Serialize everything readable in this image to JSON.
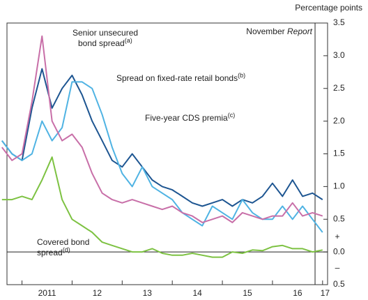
{
  "chart_data": {
    "type": "line",
    "axis_label": "Percentage points",
    "x": [
      2010.6,
      2010.8,
      2011.0,
      2011.2,
      2011.4,
      2011.6,
      2011.8,
      2012.0,
      2012.2,
      2012.4,
      2012.6,
      2012.8,
      2013.0,
      2013.2,
      2013.4,
      2013.6,
      2013.8,
      2014.0,
      2014.2,
      2014.4,
      2014.6,
      2014.8,
      2015.0,
      2015.2,
      2015.4,
      2015.6,
      2015.8,
      2016.0,
      2016.2,
      2016.4,
      2016.6,
      2016.8,
      2017.0
    ],
    "xlim": [
      2010.7,
      2017.1
    ],
    "xticks": [
      2011,
      2012,
      2013,
      2014,
      2015,
      2016,
      2017
    ],
    "xtick_labels": [
      {
        "value": 2011.5,
        "label": "2011"
      },
      {
        "value": 2012.5,
        "label": "12"
      },
      {
        "value": 2013.5,
        "label": "13"
      },
      {
        "value": 2014.5,
        "label": "14"
      },
      {
        "value": 2015.5,
        "label": "15"
      },
      {
        "value": 2016.5,
        "label": "16"
      },
      {
        "value": 2017.05,
        "label": "17"
      }
    ],
    "ylim": [
      -0.5,
      3.5
    ],
    "yticks": [
      {
        "value": -0.5,
        "label": "0.5"
      },
      {
        "value": 0,
        "label": "0.0"
      },
      {
        "value": 0.5,
        "label": "0.5"
      },
      {
        "value": 1,
        "label": "1.0"
      },
      {
        "value": 1.5,
        "label": "1.5"
      },
      {
        "value": 2,
        "label": "2.0"
      },
      {
        "value": 2.5,
        "label": "2.5"
      },
      {
        "value": 3,
        "label": "3.0"
      },
      {
        "value": 3.5,
        "label": "3.5"
      }
    ],
    "sign_labels": [
      "+",
      "–"
    ],
    "marker_line": {
      "x": 2016.85,
      "label": "November",
      "label_italic": "Report"
    },
    "series": [
      {
        "label_lines": [
          "Five-year CDS premia"
        ],
        "footnote": "(c)",
        "color": "#1d5591",
        "values": [
          1.7,
          1.5,
          1.4,
          2.2,
          2.8,
          2.2,
          2.5,
          2.7,
          2.4,
          2.0,
          1.7,
          1.4,
          1.3,
          1.5,
          1.3,
          1.1,
          1.0,
          0.95,
          0.85,
          0.75,
          0.7,
          0.75,
          0.8,
          0.7,
          0.8,
          0.75,
          0.85,
          1.05,
          0.85,
          1.1,
          0.85,
          0.9,
          0.8
        ]
      },
      {
        "label_lines": [
          "Spread on fixed-rate retail bonds"
        ],
        "footnote": "(b)",
        "color": "#4fb3e3",
        "values": [
          1.7,
          1.5,
          1.4,
          1.5,
          2.0,
          1.7,
          1.9,
          2.6,
          2.6,
          2.5,
          2.1,
          1.6,
          1.2,
          1.0,
          1.3,
          1.0,
          0.9,
          0.8,
          0.6,
          0.5,
          0.4,
          0.7,
          0.6,
          0.5,
          0.8,
          0.6,
          0.5,
          0.5,
          0.7,
          0.5,
          0.7,
          0.5,
          0.3
        ]
      },
      {
        "label_lines": [
          "Senior unsecured",
          "bond spread"
        ],
        "footnote": "(a)",
        "color": "#c86fa8",
        "values": [
          1.6,
          1.4,
          1.5,
          2.3,
          3.3,
          2.0,
          1.7,
          1.8,
          1.6,
          1.2,
          0.9,
          0.8,
          0.75,
          0.8,
          0.75,
          0.7,
          0.65,
          0.7,
          0.6,
          0.55,
          0.45,
          0.5,
          0.55,
          0.45,
          0.6,
          0.55,
          0.5,
          0.55,
          0.55,
          0.75,
          0.55,
          0.6,
          0.55
        ]
      },
      {
        "label_lines": [
          "Covered bond",
          "spread"
        ],
        "footnote": "(d)",
        "color": "#7dc242",
        "values": [
          0.8,
          0.8,
          0.85,
          0.8,
          1.1,
          1.45,
          0.8,
          0.5,
          0.4,
          0.3,
          0.15,
          0.1,
          0.05,
          0.0,
          0.0,
          0.05,
          -0.02,
          -0.05,
          -0.05,
          -0.02,
          -0.05,
          -0.08,
          -0.08,
          0.0,
          -0.02,
          0.03,
          0.02,
          0.08,
          0.1,
          0.05,
          0.05,
          0.0,
          0.03
        ]
      }
    ]
  }
}
